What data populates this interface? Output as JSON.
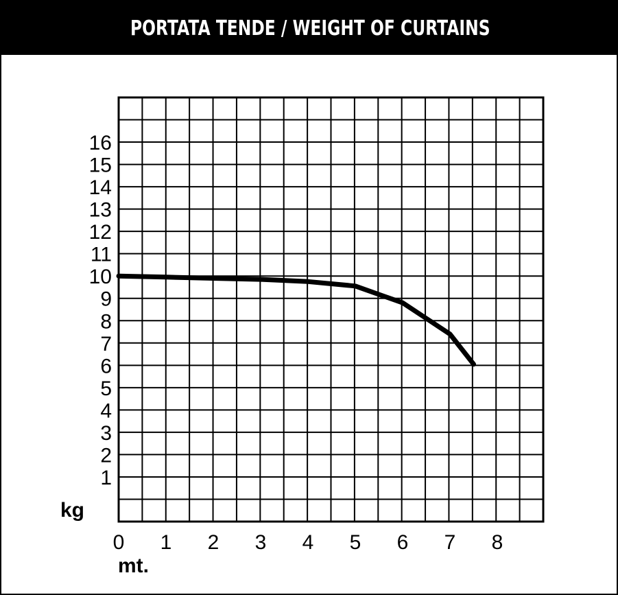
{
  "chart_data": {
    "type": "line",
    "title": "PORTATA TENDE / WEIGHT OF CURTAINS",
    "xlabel": "mt.",
    "ylabel": "kg",
    "xlim": [
      0,
      9
    ],
    "ylim": [
      -1,
      18
    ],
    "x_ticks": [
      0,
      1,
      2,
      3,
      4,
      5,
      6,
      7,
      8
    ],
    "y_ticks": [
      1,
      2,
      3,
      4,
      5,
      6,
      7,
      8,
      9,
      10,
      11,
      12,
      13,
      14,
      15,
      16
    ],
    "grid": true,
    "series": [
      {
        "x": [
          0,
          1,
          2,
          3,
          4,
          5,
          5.6,
          6,
          6.5,
          7,
          7.5
        ],
        "values": [
          10,
          9.95,
          9.9,
          9.85,
          9.75,
          9.55,
          9.1,
          8.8,
          8.1,
          7.4,
          6.05
        ],
        "color": "#000000"
      }
    ]
  }
}
